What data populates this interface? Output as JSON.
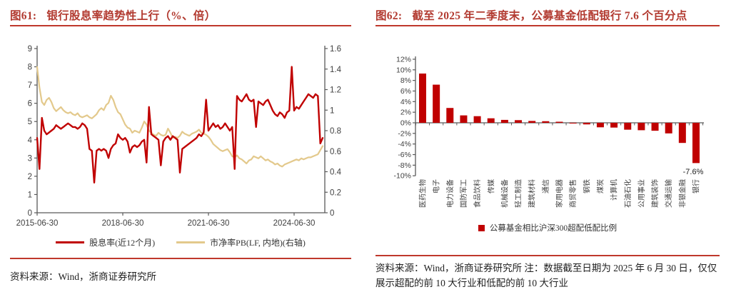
{
  "page": {
    "background": "#ffffff",
    "accent_color": "#bf382c"
  },
  "figures": [
    {
      "label": "图61:",
      "title": "银行股息率趋势性上行（%、倍）",
      "source": "资料来源：Wind，浙商证券研究所"
    },
    {
      "label": "图62:",
      "title": "截至 2025 年二季度末，公募基金低配银行 7.6 个百分点",
      "source": "资料来源：Wind，浙商证券研究所  注：数据截至日期为 2025 年 6 月 30 日，仅仅展示超配的前 10 大行业和低配的前 10 大行业"
    }
  ],
  "chart_data": [
    {
      "type": "line",
      "title": "银行股息率趋势性上行（%、倍）",
      "x_start": "2015-06-30",
      "x_end": "2025-06-30",
      "x_ticks": [
        {
          "label": "2015-06-30",
          "index": 0
        },
        {
          "label": "2018-06-30",
          "index": 36
        },
        {
          "label": "2021-06-30",
          "index": 72
        },
        {
          "label": "2024-06-30",
          "index": 108
        }
      ],
      "left_axis": {
        "min": 0,
        "max": 9,
        "ticks": [
          "0",
          "1",
          "2",
          "3",
          "4",
          "5",
          "6",
          "7",
          "8",
          "9"
        ]
      },
      "right_axis": {
        "min": 0,
        "max": 1.6,
        "ticks": [
          "0",
          "0.2",
          "0.4",
          "0.6",
          "0.8",
          "1",
          "1.2",
          "1.4",
          "1.6"
        ]
      },
      "grid": false,
      "legend_position": "bottom",
      "series": [
        {
          "name": "股息率(近12个月)",
          "axis": "left",
          "color": "#c00000",
          "values": [
            4.1,
            2.4,
            5.2,
            4.5,
            4.3,
            4.4,
            4.5,
            4.6,
            4.8,
            4.7,
            4.6,
            4.7,
            4.8,
            4.9,
            4.8,
            4.7,
            4.7,
            4.6,
            4.7,
            4.9,
            4.8,
            4.6,
            3.5,
            3.4,
            1.65,
            3.4,
            3.5,
            3.4,
            3.5,
            3.4,
            3.0,
            3.5,
            3.7,
            3.8,
            4.3,
            4.1,
            4.0,
            4.1,
            3.9,
            3.3,
            3.6,
            3.7,
            3.6,
            3.7,
            3.9,
            4.0,
            2.75,
            5.8,
            4.3,
            4.2,
            4.1,
            4.0,
            2.6,
            3.9,
            4.1,
            4.2,
            4.0,
            4.2,
            4.1,
            4.0,
            2.2,
            3.5,
            3.6,
            3.7,
            3.8,
            3.9,
            4.0,
            4.1,
            4.3,
            4.2,
            4.4,
            6.2,
            4.5,
            4.7,
            4.9,
            4.7,
            4.8,
            4.6,
            4.7,
            4.9,
            4.7,
            4.5,
            4.7,
            2.4,
            6.4,
            6.2,
            6.1,
            6.3,
            6.5,
            6.2,
            6.1,
            6.2,
            4.7,
            6.1,
            6.0,
            5.9,
            6.1,
            6.2,
            5.9,
            5.6,
            5.4,
            5.3,
            5.5,
            5.4,
            5.2,
            5.5,
            5.6,
            8.0,
            5.6,
            5.8,
            5.7,
            5.9,
            6.1,
            6.3,
            6.5,
            6.4,
            6.3,
            6.5,
            6.4,
            3.8,
            4.1
          ]
        },
        {
          "name": "市净率PB(LF, 内地)(右轴)",
          "axis": "right",
          "color": "#e3c98c",
          "values": [
            1.42,
            1.22,
            1.08,
            1.05,
            1.1,
            1.12,
            1.08,
            1.02,
            0.99,
            1.01,
            1.03,
            1.0,
            0.98,
            0.97,
            0.98,
            0.96,
            0.95,
            0.97,
            0.94,
            0.93,
            0.94,
            0.95,
            0.93,
            0.92,
            0.94,
            0.96,
            1.0,
            1.02,
            1.0,
            1.05,
            1.07,
            1.14,
            1.1,
            1.03,
            0.98,
            0.96,
            0.91,
            0.86,
            0.83,
            0.82,
            0.78,
            0.8,
            0.79,
            0.78,
            0.83,
            0.89,
            0.86,
            0.8,
            0.78,
            0.76,
            0.75,
            0.78,
            0.76,
            0.75,
            0.76,
            0.82,
            0.78,
            0.73,
            0.74,
            0.73,
            0.75,
            0.79,
            0.77,
            0.76,
            0.75,
            0.77,
            0.78,
            0.79,
            0.81,
            0.78,
            0.77,
            0.76,
            0.74,
            0.71,
            0.67,
            0.65,
            0.63,
            0.61,
            0.6,
            0.61,
            0.62,
            0.59,
            0.55,
            0.54,
            0.56,
            0.53,
            0.52,
            0.5,
            0.48,
            0.51,
            0.52,
            0.55,
            0.54,
            0.53,
            0.55,
            0.53,
            0.51,
            0.52,
            0.5,
            0.49,
            0.47,
            0.48,
            0.46,
            0.45,
            0.47,
            0.48,
            0.49,
            0.5,
            0.51,
            0.52,
            0.51,
            0.53,
            0.52,
            0.53,
            0.54,
            0.54,
            0.55,
            0.56,
            0.57,
            0.61,
            0.65
          ]
        }
      ]
    },
    {
      "type": "bar",
      "title": "截至 2025 年二季度末，公募基金低配银行 7.6 个百分点",
      "legend": "公募基金相比沪深300超配低配比例",
      "bar_color": "#c00000",
      "ylim": [
        -10,
        12
      ],
      "y_ticks": [
        "12%",
        "10%",
        "8%",
        "6%",
        "4%",
        "2%",
        "0%",
        "-2%",
        "-4%",
        "-6%",
        "-8%",
        "-10%"
      ],
      "y_tick_values": [
        12,
        10,
        8,
        6,
        4,
        2,
        0,
        -2,
        -4,
        -6,
        -8,
        -10
      ],
      "grid": false,
      "categories": [
        "医药生物",
        "电子",
        "电力设备",
        "国防军工",
        "食品饮料",
        "传媒",
        "机械设备",
        "轻工制造",
        "建筑材料",
        "通信",
        "家用电器",
        "商贸零售",
        "钢铁",
        "煤炭",
        "计算机",
        "石油石化",
        "公用事业",
        "建筑装饰",
        "交通运输",
        "非银金融",
        "银行"
      ],
      "values": [
        9.3,
        7.2,
        2.8,
        1.4,
        1.25,
        0.85,
        0.55,
        0.5,
        0.35,
        0.3,
        0.2,
        -0.1,
        -0.3,
        -0.85,
        -0.9,
        -1.3,
        -1.4,
        -1.5,
        -2.0,
        -3.8,
        -7.6
      ],
      "annotation": {
        "text": "-7.6%",
        "bar_index": 20
      }
    }
  ]
}
